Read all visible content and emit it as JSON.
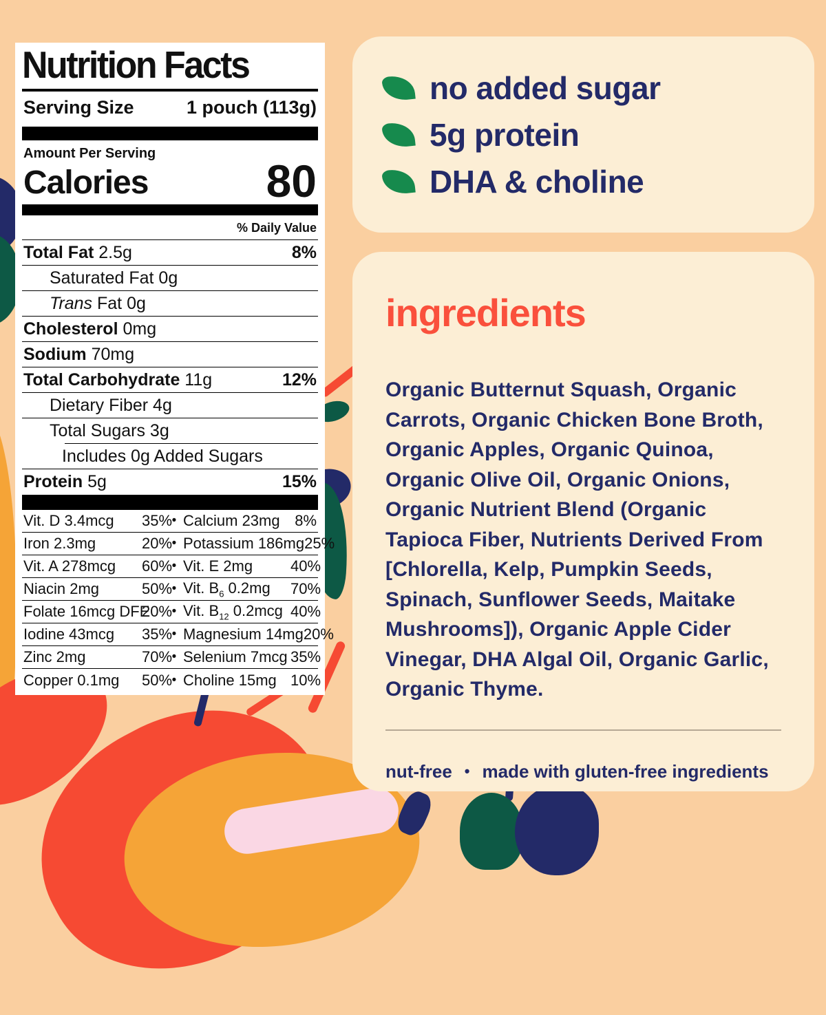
{
  "colors": {
    "bg": "#FACFA0",
    "cream": "#FCEED5",
    "navy": "#232A68",
    "green": "#168A4D",
    "coral": "#FA503C",
    "red": "#F64A33",
    "orange": "#F5A437",
    "pink": "#FAD7E4",
    "dark_green": "#0D5945"
  },
  "nutrition_label": {
    "title": "Nutrition Facts",
    "serving_size_label": "Serving Size",
    "serving_size_value": "1 pouch (113g)",
    "amount_per_serving": "Amount Per Serving",
    "calories_label": "Calories",
    "calories_value": "80",
    "daily_value_header": "% Daily Value",
    "rows": [
      {
        "indent": 0,
        "bold": "Total Fat",
        "text": " 2.5g",
        "pct": "8%"
      },
      {
        "indent": 1,
        "text": "Saturated Fat 0g"
      },
      {
        "indent": 1,
        "italic": "Trans",
        "text": " Fat 0g"
      },
      {
        "indent": 0,
        "bold": "Cholesterol",
        "text": " 0mg"
      },
      {
        "indent": 0,
        "bold": "Sodium",
        "text": " 70mg"
      },
      {
        "indent": 0,
        "bold": "Total Carbohydrate",
        "text": " 11g",
        "pct": "12%"
      },
      {
        "indent": 1,
        "text": "Dietary Fiber 4g"
      },
      {
        "indent": 1,
        "text": "Total Sugars 3g",
        "ruleIndentBelow": true
      },
      {
        "indent": 2,
        "text": "Includes 0g Added Sugars"
      },
      {
        "indent": 0,
        "bold": "Protein",
        "text": " 5g",
        "pct": "15%"
      }
    ],
    "micronutrients": [
      {
        "l": {
          "pre": "Vit. D 3.4mcg",
          "sub": "",
          "post": "",
          "pct": "35%"
        },
        "r": {
          "pre": "Calcium 23mg",
          "sub": "",
          "post": "",
          "pct": "8%"
        }
      },
      {
        "l": {
          "pre": "Iron 2.3mg",
          "sub": "",
          "post": "",
          "pct": "20%"
        },
        "r": {
          "pre": "Potassium 186mg",
          "sub": "",
          "post": "",
          "pct": "25%"
        }
      },
      {
        "l": {
          "pre": "Vit. A 278mcg",
          "sub": "",
          "post": "",
          "pct": "60%"
        },
        "r": {
          "pre": "Vit. E 2mg",
          "sub": "",
          "post": "",
          "pct": "40%"
        }
      },
      {
        "l": {
          "pre": "Niacin 2mg",
          "sub": "",
          "post": "",
          "pct": "50%"
        },
        "r": {
          "pre": "Vit. B",
          "sub": "6",
          "post": " 0.2mg",
          "pct": "70%"
        }
      },
      {
        "l": {
          "pre": "Folate 16mcg DFE",
          "sub": "",
          "post": "",
          "pct": "20%"
        },
        "r": {
          "pre": "Vit. B",
          "sub": "12",
          "post": " 0.2mcg",
          "pct": "40%"
        }
      },
      {
        "l": {
          "pre": "Iodine 43mcg",
          "sub": "",
          "post": "",
          "pct": "35%"
        },
        "r": {
          "pre": "Magnesium 14mg",
          "sub": "",
          "post": "",
          "pct": "20%"
        }
      },
      {
        "l": {
          "pre": "Zinc 2mg",
          "sub": "",
          "post": "",
          "pct": "70%"
        },
        "r": {
          "pre": "Selenium 7mcg",
          "sub": "",
          "post": "",
          "pct": "35%"
        }
      },
      {
        "l": {
          "pre": "Copper 0.1mg",
          "sub": "",
          "post": "",
          "pct": "50%"
        },
        "r": {
          "pre": "Choline 15mg",
          "sub": "",
          "post": "",
          "pct": "10%"
        }
      }
    ],
    "micro_bullet": "•"
  },
  "benefits": {
    "items": [
      "no added sugar",
      "5g protein",
      "DHA & choline"
    ]
  },
  "ingredients": {
    "heading": "ingredients",
    "body": "Organic Butternut Squash, Organic Carrots, Organic Chicken Bone Broth, Organic Apples,  Organic Quinoa, Organic Olive Oil, Organic Onions, Organic Nutrient Blend (Organic Tapioca Fiber, Nutrients Derived From [Chlorella, Kelp, Pumpkin Seeds, Spinach, Sunflower Seeds, Maitake Mushrooms]), Organic Apple Cider Vinegar, DHA Algal Oil, Organic Garlic, Organic Thyme.",
    "footnote_left": "nut-free",
    "footnote_sep": "•",
    "footnote_right": "made with gluten-free ingredients"
  }
}
